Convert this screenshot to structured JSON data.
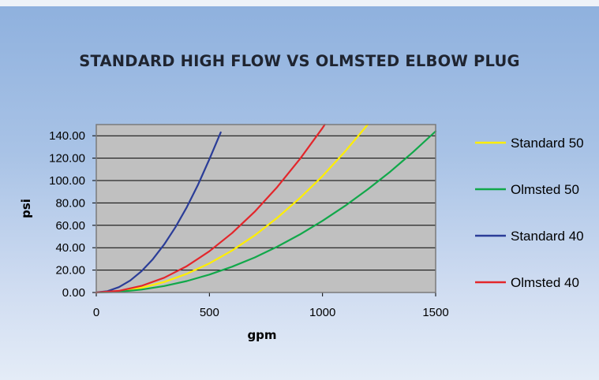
{
  "chart_data": {
    "type": "line",
    "title": "STANDARD HIGH FLOW VS OLMSTED ELBOW PLUG",
    "xlabel": "gpm",
    "ylabel": "psi",
    "xlim": [
      0,
      1500
    ],
    "ylim": [
      0,
      150
    ],
    "xticks": [
      "0",
      "500",
      "1000",
      "1500"
    ],
    "yticks": [
      "0.00",
      "20.00",
      "40.00",
      "60.00",
      "80.00",
      "100.00",
      "120.00",
      "140.00"
    ],
    "grid": "horizontal",
    "legend": "right",
    "series": [
      {
        "name": "Standard 50",
        "color": "#ffee00",
        "x": [
          0,
          100,
          200,
          300,
          400,
          500,
          600,
          700,
          800,
          900,
          1000,
          1100,
          1200
        ],
        "y": [
          0,
          1,
          4.2,
          9.4,
          16.7,
          26,
          37.5,
          51,
          66.7,
          84.4,
          104,
          126,
          150
        ]
      },
      {
        "name": "Olmsted 50",
        "color": "#11a84a",
        "x": [
          0,
          100,
          200,
          300,
          400,
          500,
          600,
          700,
          800,
          900,
          1000,
          1100,
          1200,
          1300,
          1400,
          1500
        ],
        "y": [
          0,
          0.6,
          2.6,
          5.8,
          10.2,
          16,
          23,
          31.3,
          40.9,
          51.8,
          64,
          77.4,
          92.2,
          108,
          125.4,
          144
        ]
      },
      {
        "name": "Standard 40",
        "color": "#2b3d98",
        "x": [
          0,
          50,
          100,
          150,
          200,
          250,
          300,
          350,
          400,
          450,
          500,
          550
        ],
        "y": [
          0,
          1.2,
          4.8,
          10.7,
          19,
          29.8,
          42.9,
          58.3,
          76.2,
          96.4,
          119,
          143
        ]
      },
      {
        "name": "Olmsted 40",
        "color": "#e3262b",
        "x": [
          0,
          100,
          200,
          300,
          400,
          500,
          600,
          700,
          800,
          900,
          1000,
          1010
        ],
        "y": [
          0,
          1.5,
          5.9,
          13.2,
          23.5,
          36.8,
          53,
          72.1,
          94.2,
          119.2,
          147,
          150
        ]
      }
    ]
  }
}
